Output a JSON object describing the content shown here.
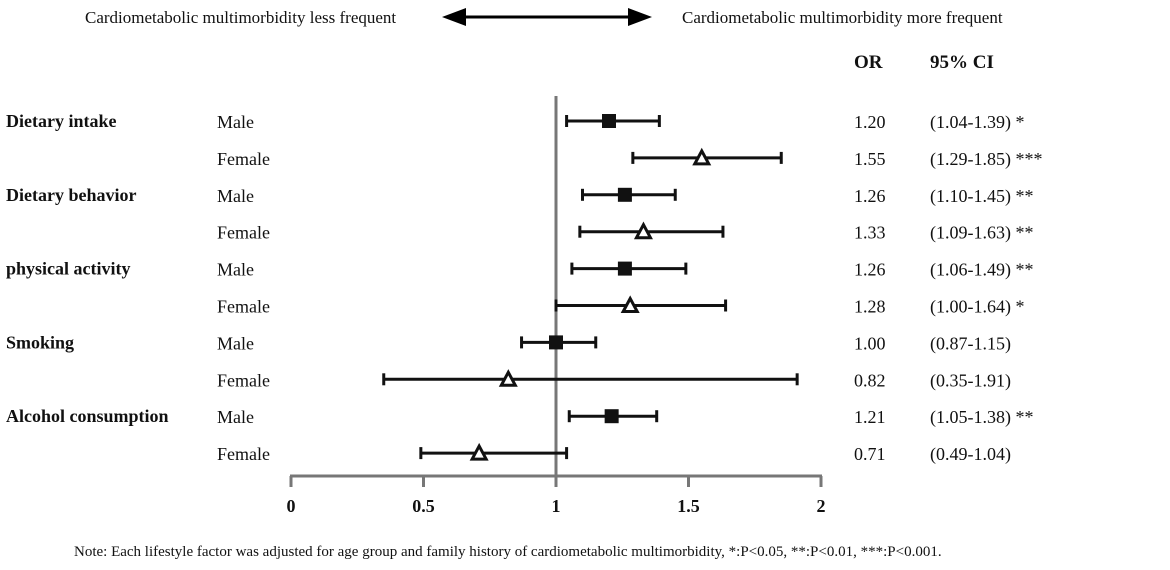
{
  "header": {
    "left_label": "Cardiometabolic multimorbidity less frequent",
    "right_label": "Cardiometabolic multimorbidity more frequent",
    "or_header": "OR",
    "ci_header": "95% CI"
  },
  "chart_data": {
    "type": "forest",
    "title": "",
    "xlabel": "",
    "ylabel": "",
    "xlim": [
      0,
      2
    ],
    "xticks": [
      0,
      0.5,
      1,
      1.5,
      2
    ],
    "tick_labels": [
      "0",
      "0.5",
      "1",
      "1.5",
      "2"
    ],
    "reference_line": 1,
    "marker_legend": {
      "Male": "filled-square",
      "Female": "open-triangle"
    },
    "factors": [
      {
        "name": "Dietary intake",
        "rows": [
          {
            "sex": "Male",
            "or": 1.2,
            "lo": 1.04,
            "hi": 1.39,
            "or_text": "1.20",
            "ci_text": "(1.04-1.39) *"
          },
          {
            "sex": "Female",
            "or": 1.55,
            "lo": 1.29,
            "hi": 1.85,
            "or_text": "1.55",
            "ci_text": "(1.29-1.85) ***"
          }
        ]
      },
      {
        "name": "Dietary behavior",
        "rows": [
          {
            "sex": "Male",
            "or": 1.26,
            "lo": 1.1,
            "hi": 1.45,
            "or_text": "1.26",
            "ci_text": "(1.10-1.45) **"
          },
          {
            "sex": "Female",
            "or": 1.33,
            "lo": 1.09,
            "hi": 1.63,
            "or_text": "1.33",
            "ci_text": "(1.09-1.63) **"
          }
        ]
      },
      {
        "name": "physical activity",
        "rows": [
          {
            "sex": "Male",
            "or": 1.26,
            "lo": 1.06,
            "hi": 1.49,
            "or_text": "1.26",
            "ci_text": "(1.06-1.49) **"
          },
          {
            "sex": "Female",
            "or": 1.28,
            "lo": 1.0,
            "hi": 1.64,
            "or_text": "1.28",
            "ci_text": "(1.00-1.64) *"
          }
        ]
      },
      {
        "name": "Smoking",
        "rows": [
          {
            "sex": "Male",
            "or": 1.0,
            "lo": 0.87,
            "hi": 1.15,
            "or_text": "1.00",
            "ci_text": "(0.87-1.15)"
          },
          {
            "sex": "Female",
            "or": 0.82,
            "lo": 0.35,
            "hi": 1.91,
            "or_text": "0.82",
            "ci_text": "(0.35-1.91)"
          }
        ]
      },
      {
        "name": "Alcohol consumption",
        "rows": [
          {
            "sex": "Male",
            "or": 1.21,
            "lo": 1.05,
            "hi": 1.38,
            "or_text": "1.21",
            "ci_text": "(1.05-1.38) **"
          },
          {
            "sex": "Female",
            "or": 0.71,
            "lo": 0.49,
            "hi": 1.04,
            "or_text": "0.71",
            "ci_text": "(0.49-1.04)"
          }
        ]
      }
    ]
  },
  "note": "Note: Each lifestyle factor was adjusted for age group and family history of cardiometabolic multimorbidity, *:P<0.05, **:P<0.01, ***:P<0.001."
}
